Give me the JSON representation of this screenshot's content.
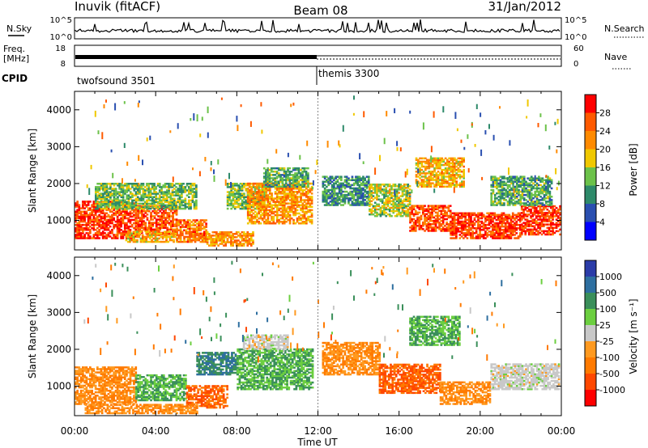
{
  "header": {
    "station": "Inuvik (fitACF)",
    "beam": "Beam 08",
    "date": "31/Jan/2012"
  },
  "panels": {
    "nsky_label": "N.Sky",
    "nsky_ticks": [
      "10^5",
      "10^0"
    ],
    "nsearch_label": "N.Search",
    "nsearch_ticks": [
      "10^5",
      "10^0"
    ],
    "freq_label": "Freq.",
    "freq_unit": "[MHz]",
    "freq_ticks": [
      "18",
      "8"
    ],
    "nave_label": "Nave",
    "nave_ticks": [
      "60",
      "0"
    ],
    "cpid_label": "CPID",
    "cpid_segments": [
      {
        "name": "twofsound 3501",
        "start_hour": 0,
        "end_hour": 12
      },
      {
        "name": "themis 3300",
        "start_hour": 12,
        "end_hour": 24
      }
    ]
  },
  "colors": {
    "power": [
      "#0000ff",
      "#2a4fb0",
      "#2e8a6a",
      "#6cc24a",
      "#f0c800",
      "#ff8a00",
      "#ff5a00",
      "#ff0000"
    ],
    "velocity": [
      "#2b3ca8",
      "#2e6fa0",
      "#3a8f5a",
      "#6ccf40",
      "#c8c8c8",
      "#ff9a20",
      "#ff7a00",
      "#ff4800",
      "#ff0000"
    ]
  },
  "chart_data": [
    {
      "type": "heatmap",
      "name": "power",
      "xlabel": "Time UT",
      "ylabel": "Slant Range [km]",
      "xlim": [
        0,
        24
      ],
      "ylim": [
        200,
        4500
      ],
      "xticks": [
        "00:00",
        "04:00",
        "08:00",
        "12:00",
        "16:00",
        "20:00",
        "00:00"
      ],
      "yticks": [
        1000,
        2000,
        3000,
        4000
      ],
      "colorbar_label": "Power [dB]",
      "colorbar_ticks": [
        28,
        24,
        20,
        16,
        12,
        8,
        4
      ],
      "colorbar_range": [
        0,
        32
      ],
      "regions": [
        {
          "t0": 0.0,
          "t1": 3.0,
          "r0": 500,
          "r1": 1500,
          "value": 28
        },
        {
          "t0": 3.0,
          "t1": 5.0,
          "r0": 600,
          "r1": 1400,
          "value": 26
        },
        {
          "t0": 5.0,
          "t1": 6.5,
          "r0": 400,
          "r1": 1000,
          "value": 24
        },
        {
          "t0": 1.0,
          "t1": 6.0,
          "r0": 1300,
          "r1": 2000,
          "value": 14
        },
        {
          "t0": 2.5,
          "t1": 5.0,
          "r0": 400,
          "r1": 700,
          "value": 20
        },
        {
          "t0": 6.5,
          "t1": 8.8,
          "r0": 300,
          "r1": 700,
          "value": 22
        },
        {
          "t0": 7.5,
          "t1": 9.3,
          "r0": 1300,
          "r1": 2000,
          "value": 14
        },
        {
          "t0": 8.5,
          "t1": 11.7,
          "r0": 900,
          "r1": 2000,
          "value": 22
        },
        {
          "t0": 9.3,
          "t1": 11.5,
          "r0": 1900,
          "r1": 2400,
          "value": 12
        },
        {
          "t0": 12.2,
          "t1": 14.5,
          "r0": 1400,
          "r1": 2200,
          "value": 10
        },
        {
          "t0": 14.5,
          "t1": 16.5,
          "r0": 1100,
          "r1": 2000,
          "value": 16
        },
        {
          "t0": 16.5,
          "t1": 18.5,
          "r0": 700,
          "r1": 1400,
          "value": 26
        },
        {
          "t0": 18.5,
          "t1": 22.0,
          "r0": 500,
          "r1": 1200,
          "value": 28
        },
        {
          "t0": 22.0,
          "t1": 23.9,
          "r0": 600,
          "r1": 1400,
          "value": 28
        },
        {
          "t0": 16.8,
          "t1": 19.2,
          "r0": 1900,
          "r1": 2700,
          "value": 20
        },
        {
          "t0": 20.5,
          "t1": 23.5,
          "r0": 1400,
          "r1": 2200,
          "value": 12
        }
      ]
    },
    {
      "type": "heatmap",
      "name": "velocity",
      "xlabel": "Time UT",
      "ylabel": "Slant Range [km]",
      "xlim": [
        0,
        24
      ],
      "ylim": [
        200,
        4500
      ],
      "xticks": [
        "00:00",
        "04:00",
        "08:00",
        "12:00",
        "16:00",
        "20:00",
        "00:00"
      ],
      "yticks": [
        1000,
        2000,
        3000,
        4000
      ],
      "colorbar_label": "Velocity [m s⁻¹]",
      "colorbar_ticks": [
        "1000",
        "500",
        "100",
        "25",
        "-25",
        "-100",
        "-500",
        "-1000"
      ],
      "regions": [
        {
          "t0": 0.0,
          "t1": 3.0,
          "r0": 500,
          "r1": 1500,
          "value": -100
        },
        {
          "t0": 3.0,
          "t1": 5.5,
          "r0": 600,
          "r1": 1300,
          "value": 100
        },
        {
          "t0": 5.5,
          "t1": 7.5,
          "r0": 400,
          "r1": 1000,
          "value": -500
        },
        {
          "t0": 6.0,
          "t1": 8.0,
          "r0": 1300,
          "r1": 1900,
          "value": 500
        },
        {
          "t0": 8.0,
          "t1": 11.7,
          "r0": 900,
          "r1": 2000,
          "value": 100
        },
        {
          "t0": 8.3,
          "t1": 10.5,
          "r0": 2000,
          "r1": 2400,
          "value": 0
        },
        {
          "t0": 12.2,
          "t1": 15.0,
          "r0": 1300,
          "r1": 2200,
          "value": -100
        },
        {
          "t0": 15.0,
          "t1": 18.0,
          "r0": 800,
          "r1": 1600,
          "value": -500
        },
        {
          "t0": 18.0,
          "t1": 20.5,
          "r0": 500,
          "r1": 1100,
          "value": -100
        },
        {
          "t0": 20.5,
          "t1": 23.9,
          "r0": 900,
          "r1": 1600,
          "value": 0
        },
        {
          "t0": 16.5,
          "t1": 19.0,
          "r0": 2100,
          "r1": 2900,
          "value": 100
        },
        {
          "t0": 0.5,
          "t1": 6.0,
          "r0": 250,
          "r1": 500,
          "value": -100
        }
      ]
    }
  ]
}
